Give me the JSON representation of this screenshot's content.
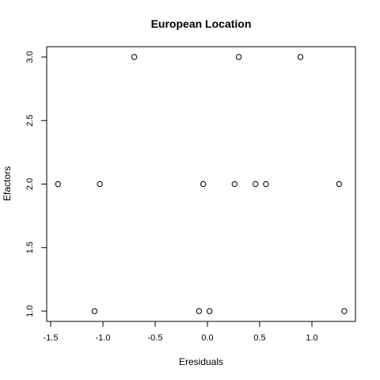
{
  "chart_data": {
    "type": "scatter",
    "title": "European Location",
    "xlabel": "Eresiduals",
    "ylabel": "Efactors",
    "xlim": [
      -1.5,
      1.3
    ],
    "ylim": [
      1.0,
      3.0
    ],
    "x_ticks": [
      -1.5,
      -1.0,
      -0.5,
      0.0,
      0.5,
      1.0
    ],
    "x_tick_labels": [
      "-1.5",
      "-1.0",
      "-0.5",
      "0.0",
      "0.5",
      "1.0"
    ],
    "y_ticks": [
      1.0,
      1.5,
      2.0,
      2.5,
      3.0
    ],
    "y_tick_labels": [
      "1.0",
      "1.5",
      "2.0",
      "2.5",
      "3.0"
    ],
    "grid": false,
    "marker": "open-circle",
    "points": [
      {
        "x": -0.7,
        "y": 3.0
      },
      {
        "x": 0.3,
        "y": 3.0
      },
      {
        "x": 0.89,
        "y": 3.0
      },
      {
        "x": -1.43,
        "y": 2.0
      },
      {
        "x": -1.03,
        "y": 2.0
      },
      {
        "x": -0.04,
        "y": 2.0
      },
      {
        "x": 0.26,
        "y": 2.0
      },
      {
        "x": 0.46,
        "y": 2.0
      },
      {
        "x": 0.56,
        "y": 2.0
      },
      {
        "x": 1.26,
        "y": 2.0
      },
      {
        "x": -1.08,
        "y": 1.0
      },
      {
        "x": -0.08,
        "y": 1.0
      },
      {
        "x": 0.02,
        "y": 1.0
      },
      {
        "x": 1.31,
        "y": 1.0
      }
    ]
  }
}
